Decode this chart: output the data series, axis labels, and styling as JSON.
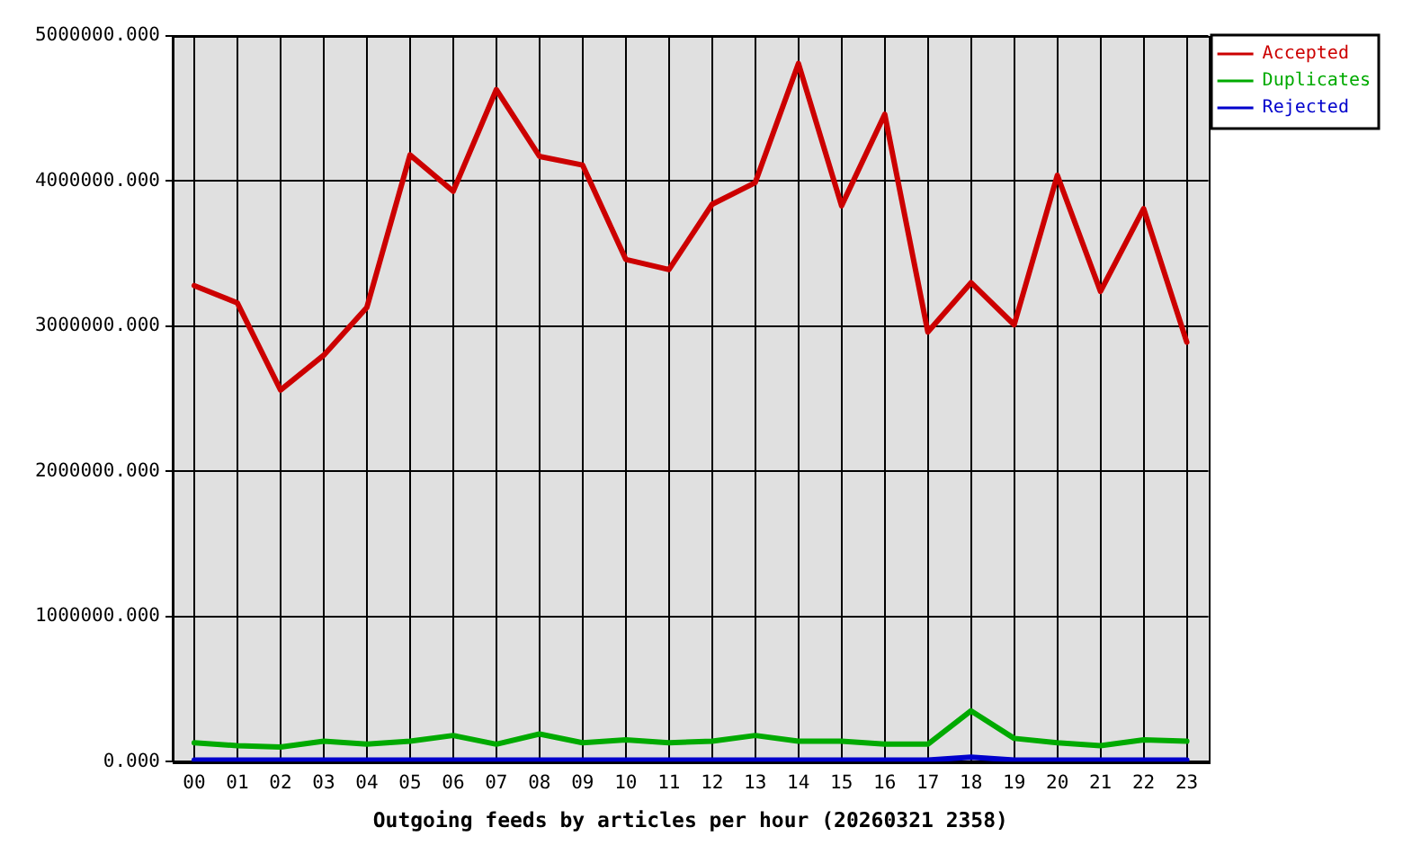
{
  "chart_data": {
    "type": "line",
    "xlabel": "Outgoing feeds by articles per hour (20260321 2358)",
    "categories": [
      "00",
      "01",
      "02",
      "03",
      "04",
      "05",
      "06",
      "07",
      "08",
      "09",
      "10",
      "11",
      "12",
      "13",
      "14",
      "15",
      "16",
      "17",
      "18",
      "19",
      "20",
      "21",
      "22",
      "23"
    ],
    "series": [
      {
        "name": "Accepted",
        "color": "#cc0000",
        "values": [
          3280000,
          3160000,
          2560000,
          2800000,
          3130000,
          4180000,
          3930000,
          4630000,
          4170000,
          4110000,
          3460000,
          3390000,
          3840000,
          3990000,
          4810000,
          3830000,
          4460000,
          2960000,
          3300000,
          3010000,
          4040000,
          3240000,
          3810000,
          2890000
        ]
      },
      {
        "name": "Duplicates",
        "color": "#00aa00",
        "values": [
          130000,
          110000,
          100000,
          140000,
          120000,
          140000,
          180000,
          120000,
          190000,
          130000,
          150000,
          130000,
          140000,
          180000,
          140000,
          140000,
          120000,
          120000,
          350000,
          160000,
          130000,
          110000,
          150000,
          140000
        ]
      },
      {
        "name": "Rejected",
        "color": "#0000cc",
        "values": [
          10000,
          10000,
          10000,
          10000,
          10000,
          10000,
          10000,
          10000,
          10000,
          10000,
          10000,
          10000,
          10000,
          10000,
          10000,
          10000,
          10000,
          10000,
          30000,
          10000,
          10000,
          10000,
          10000,
          10000
        ]
      }
    ],
    "ylim": [
      0,
      5000000
    ],
    "yticks": [
      {
        "value": 0,
        "label": "0.000"
      },
      {
        "value": 1000000,
        "label": "1000000.000"
      },
      {
        "value": 2000000,
        "label": "2000000.000"
      },
      {
        "value": 3000000,
        "label": "3000000.000"
      },
      {
        "value": 4000000,
        "label": "4000000.000"
      },
      {
        "value": 5000000,
        "label": "5000000.000"
      }
    ],
    "grid": true,
    "legend": "top right"
  }
}
